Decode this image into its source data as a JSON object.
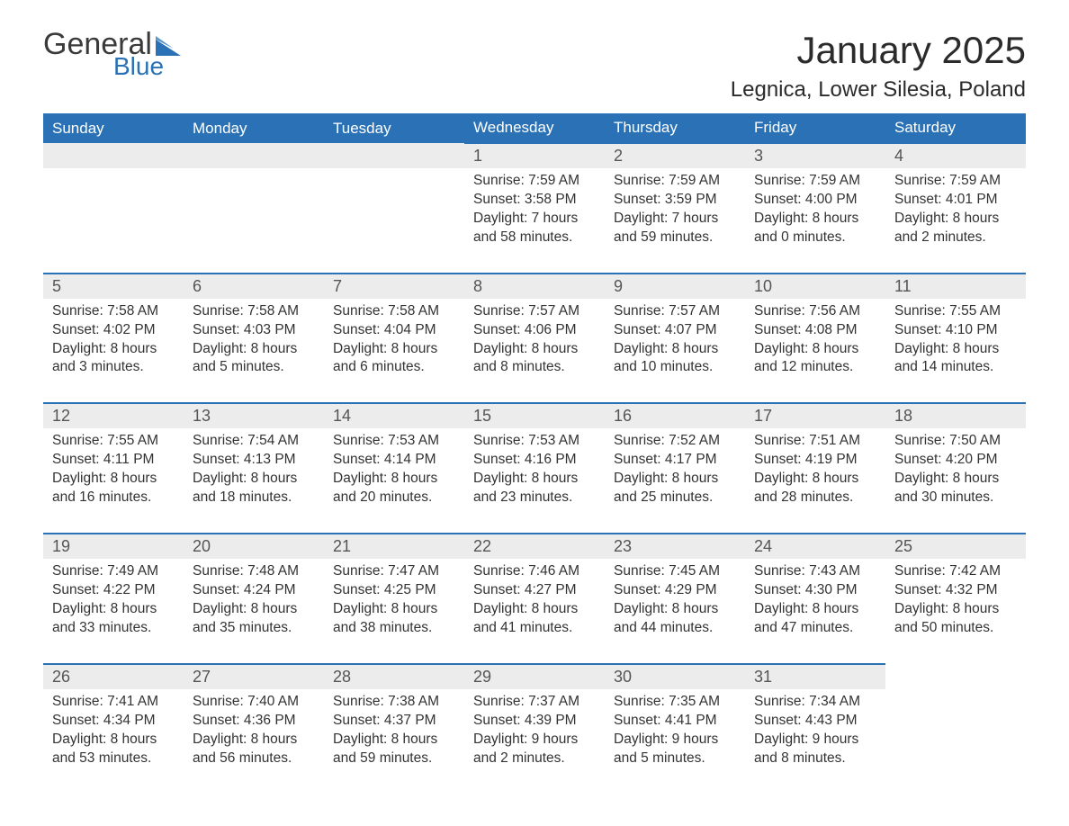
{
  "logo": {
    "word1": "General",
    "word2": "Blue",
    "flag_color": "#2a72b5"
  },
  "title": "January 2025",
  "location": "Legnica, Lower Silesia, Poland",
  "colors": {
    "header_bg": "#2a72b5",
    "header_text": "#ffffff",
    "daynum_bg": "#ececec",
    "daynum_text": "#555555",
    "body_text": "#333333",
    "rule": "#2a72b5",
    "page_bg": "#ffffff"
  },
  "fonts": {
    "family": "Arial",
    "title_size": 42,
    "location_size": 24,
    "header_size": 17,
    "body_size": 15.5
  },
  "day_headers": [
    "Sunday",
    "Monday",
    "Tuesday",
    "Wednesday",
    "Thursday",
    "Friday",
    "Saturday"
  ],
  "weeks": [
    [
      null,
      null,
      null,
      {
        "n": "1",
        "sunrise": "Sunrise: 7:59 AM",
        "sunset": "Sunset: 3:58 PM",
        "day1": "Daylight: 7 hours",
        "day2": "and 58 minutes."
      },
      {
        "n": "2",
        "sunrise": "Sunrise: 7:59 AM",
        "sunset": "Sunset: 3:59 PM",
        "day1": "Daylight: 7 hours",
        "day2": "and 59 minutes."
      },
      {
        "n": "3",
        "sunrise": "Sunrise: 7:59 AM",
        "sunset": "Sunset: 4:00 PM",
        "day1": "Daylight: 8 hours",
        "day2": "and 0 minutes."
      },
      {
        "n": "4",
        "sunrise": "Sunrise: 7:59 AM",
        "sunset": "Sunset: 4:01 PM",
        "day1": "Daylight: 8 hours",
        "day2": "and 2 minutes."
      }
    ],
    [
      {
        "n": "5",
        "sunrise": "Sunrise: 7:58 AM",
        "sunset": "Sunset: 4:02 PM",
        "day1": "Daylight: 8 hours",
        "day2": "and 3 minutes."
      },
      {
        "n": "6",
        "sunrise": "Sunrise: 7:58 AM",
        "sunset": "Sunset: 4:03 PM",
        "day1": "Daylight: 8 hours",
        "day2": "and 5 minutes."
      },
      {
        "n": "7",
        "sunrise": "Sunrise: 7:58 AM",
        "sunset": "Sunset: 4:04 PM",
        "day1": "Daylight: 8 hours",
        "day2": "and 6 minutes."
      },
      {
        "n": "8",
        "sunrise": "Sunrise: 7:57 AM",
        "sunset": "Sunset: 4:06 PM",
        "day1": "Daylight: 8 hours",
        "day2": "and 8 minutes."
      },
      {
        "n": "9",
        "sunrise": "Sunrise: 7:57 AM",
        "sunset": "Sunset: 4:07 PM",
        "day1": "Daylight: 8 hours",
        "day2": "and 10 minutes."
      },
      {
        "n": "10",
        "sunrise": "Sunrise: 7:56 AM",
        "sunset": "Sunset: 4:08 PM",
        "day1": "Daylight: 8 hours",
        "day2": "and 12 minutes."
      },
      {
        "n": "11",
        "sunrise": "Sunrise: 7:55 AM",
        "sunset": "Sunset: 4:10 PM",
        "day1": "Daylight: 8 hours",
        "day2": "and 14 minutes."
      }
    ],
    [
      {
        "n": "12",
        "sunrise": "Sunrise: 7:55 AM",
        "sunset": "Sunset: 4:11 PM",
        "day1": "Daylight: 8 hours",
        "day2": "and 16 minutes."
      },
      {
        "n": "13",
        "sunrise": "Sunrise: 7:54 AM",
        "sunset": "Sunset: 4:13 PM",
        "day1": "Daylight: 8 hours",
        "day2": "and 18 minutes."
      },
      {
        "n": "14",
        "sunrise": "Sunrise: 7:53 AM",
        "sunset": "Sunset: 4:14 PM",
        "day1": "Daylight: 8 hours",
        "day2": "and 20 minutes."
      },
      {
        "n": "15",
        "sunrise": "Sunrise: 7:53 AM",
        "sunset": "Sunset: 4:16 PM",
        "day1": "Daylight: 8 hours",
        "day2": "and 23 minutes."
      },
      {
        "n": "16",
        "sunrise": "Sunrise: 7:52 AM",
        "sunset": "Sunset: 4:17 PM",
        "day1": "Daylight: 8 hours",
        "day2": "and 25 minutes."
      },
      {
        "n": "17",
        "sunrise": "Sunrise: 7:51 AM",
        "sunset": "Sunset: 4:19 PM",
        "day1": "Daylight: 8 hours",
        "day2": "and 28 minutes."
      },
      {
        "n": "18",
        "sunrise": "Sunrise: 7:50 AM",
        "sunset": "Sunset: 4:20 PM",
        "day1": "Daylight: 8 hours",
        "day2": "and 30 minutes."
      }
    ],
    [
      {
        "n": "19",
        "sunrise": "Sunrise: 7:49 AM",
        "sunset": "Sunset: 4:22 PM",
        "day1": "Daylight: 8 hours",
        "day2": "and 33 minutes."
      },
      {
        "n": "20",
        "sunrise": "Sunrise: 7:48 AM",
        "sunset": "Sunset: 4:24 PM",
        "day1": "Daylight: 8 hours",
        "day2": "and 35 minutes."
      },
      {
        "n": "21",
        "sunrise": "Sunrise: 7:47 AM",
        "sunset": "Sunset: 4:25 PM",
        "day1": "Daylight: 8 hours",
        "day2": "and 38 minutes."
      },
      {
        "n": "22",
        "sunrise": "Sunrise: 7:46 AM",
        "sunset": "Sunset: 4:27 PM",
        "day1": "Daylight: 8 hours",
        "day2": "and 41 minutes."
      },
      {
        "n": "23",
        "sunrise": "Sunrise: 7:45 AM",
        "sunset": "Sunset: 4:29 PM",
        "day1": "Daylight: 8 hours",
        "day2": "and 44 minutes."
      },
      {
        "n": "24",
        "sunrise": "Sunrise: 7:43 AM",
        "sunset": "Sunset: 4:30 PM",
        "day1": "Daylight: 8 hours",
        "day2": "and 47 minutes."
      },
      {
        "n": "25",
        "sunrise": "Sunrise: 7:42 AM",
        "sunset": "Sunset: 4:32 PM",
        "day1": "Daylight: 8 hours",
        "day2": "and 50 minutes."
      }
    ],
    [
      {
        "n": "26",
        "sunrise": "Sunrise: 7:41 AM",
        "sunset": "Sunset: 4:34 PM",
        "day1": "Daylight: 8 hours",
        "day2": "and 53 minutes."
      },
      {
        "n": "27",
        "sunrise": "Sunrise: 7:40 AM",
        "sunset": "Sunset: 4:36 PM",
        "day1": "Daylight: 8 hours",
        "day2": "and 56 minutes."
      },
      {
        "n": "28",
        "sunrise": "Sunrise: 7:38 AM",
        "sunset": "Sunset: 4:37 PM",
        "day1": "Daylight: 8 hours",
        "day2": "and 59 minutes."
      },
      {
        "n": "29",
        "sunrise": "Sunrise: 7:37 AM",
        "sunset": "Sunset: 4:39 PM",
        "day1": "Daylight: 9 hours",
        "day2": "and 2 minutes."
      },
      {
        "n": "30",
        "sunrise": "Sunrise: 7:35 AM",
        "sunset": "Sunset: 4:41 PM",
        "day1": "Daylight: 9 hours",
        "day2": "and 5 minutes."
      },
      {
        "n": "31",
        "sunrise": "Sunrise: 7:34 AM",
        "sunset": "Sunset: 4:43 PM",
        "day1": "Daylight: 9 hours",
        "day2": "and 8 minutes."
      },
      null
    ]
  ]
}
